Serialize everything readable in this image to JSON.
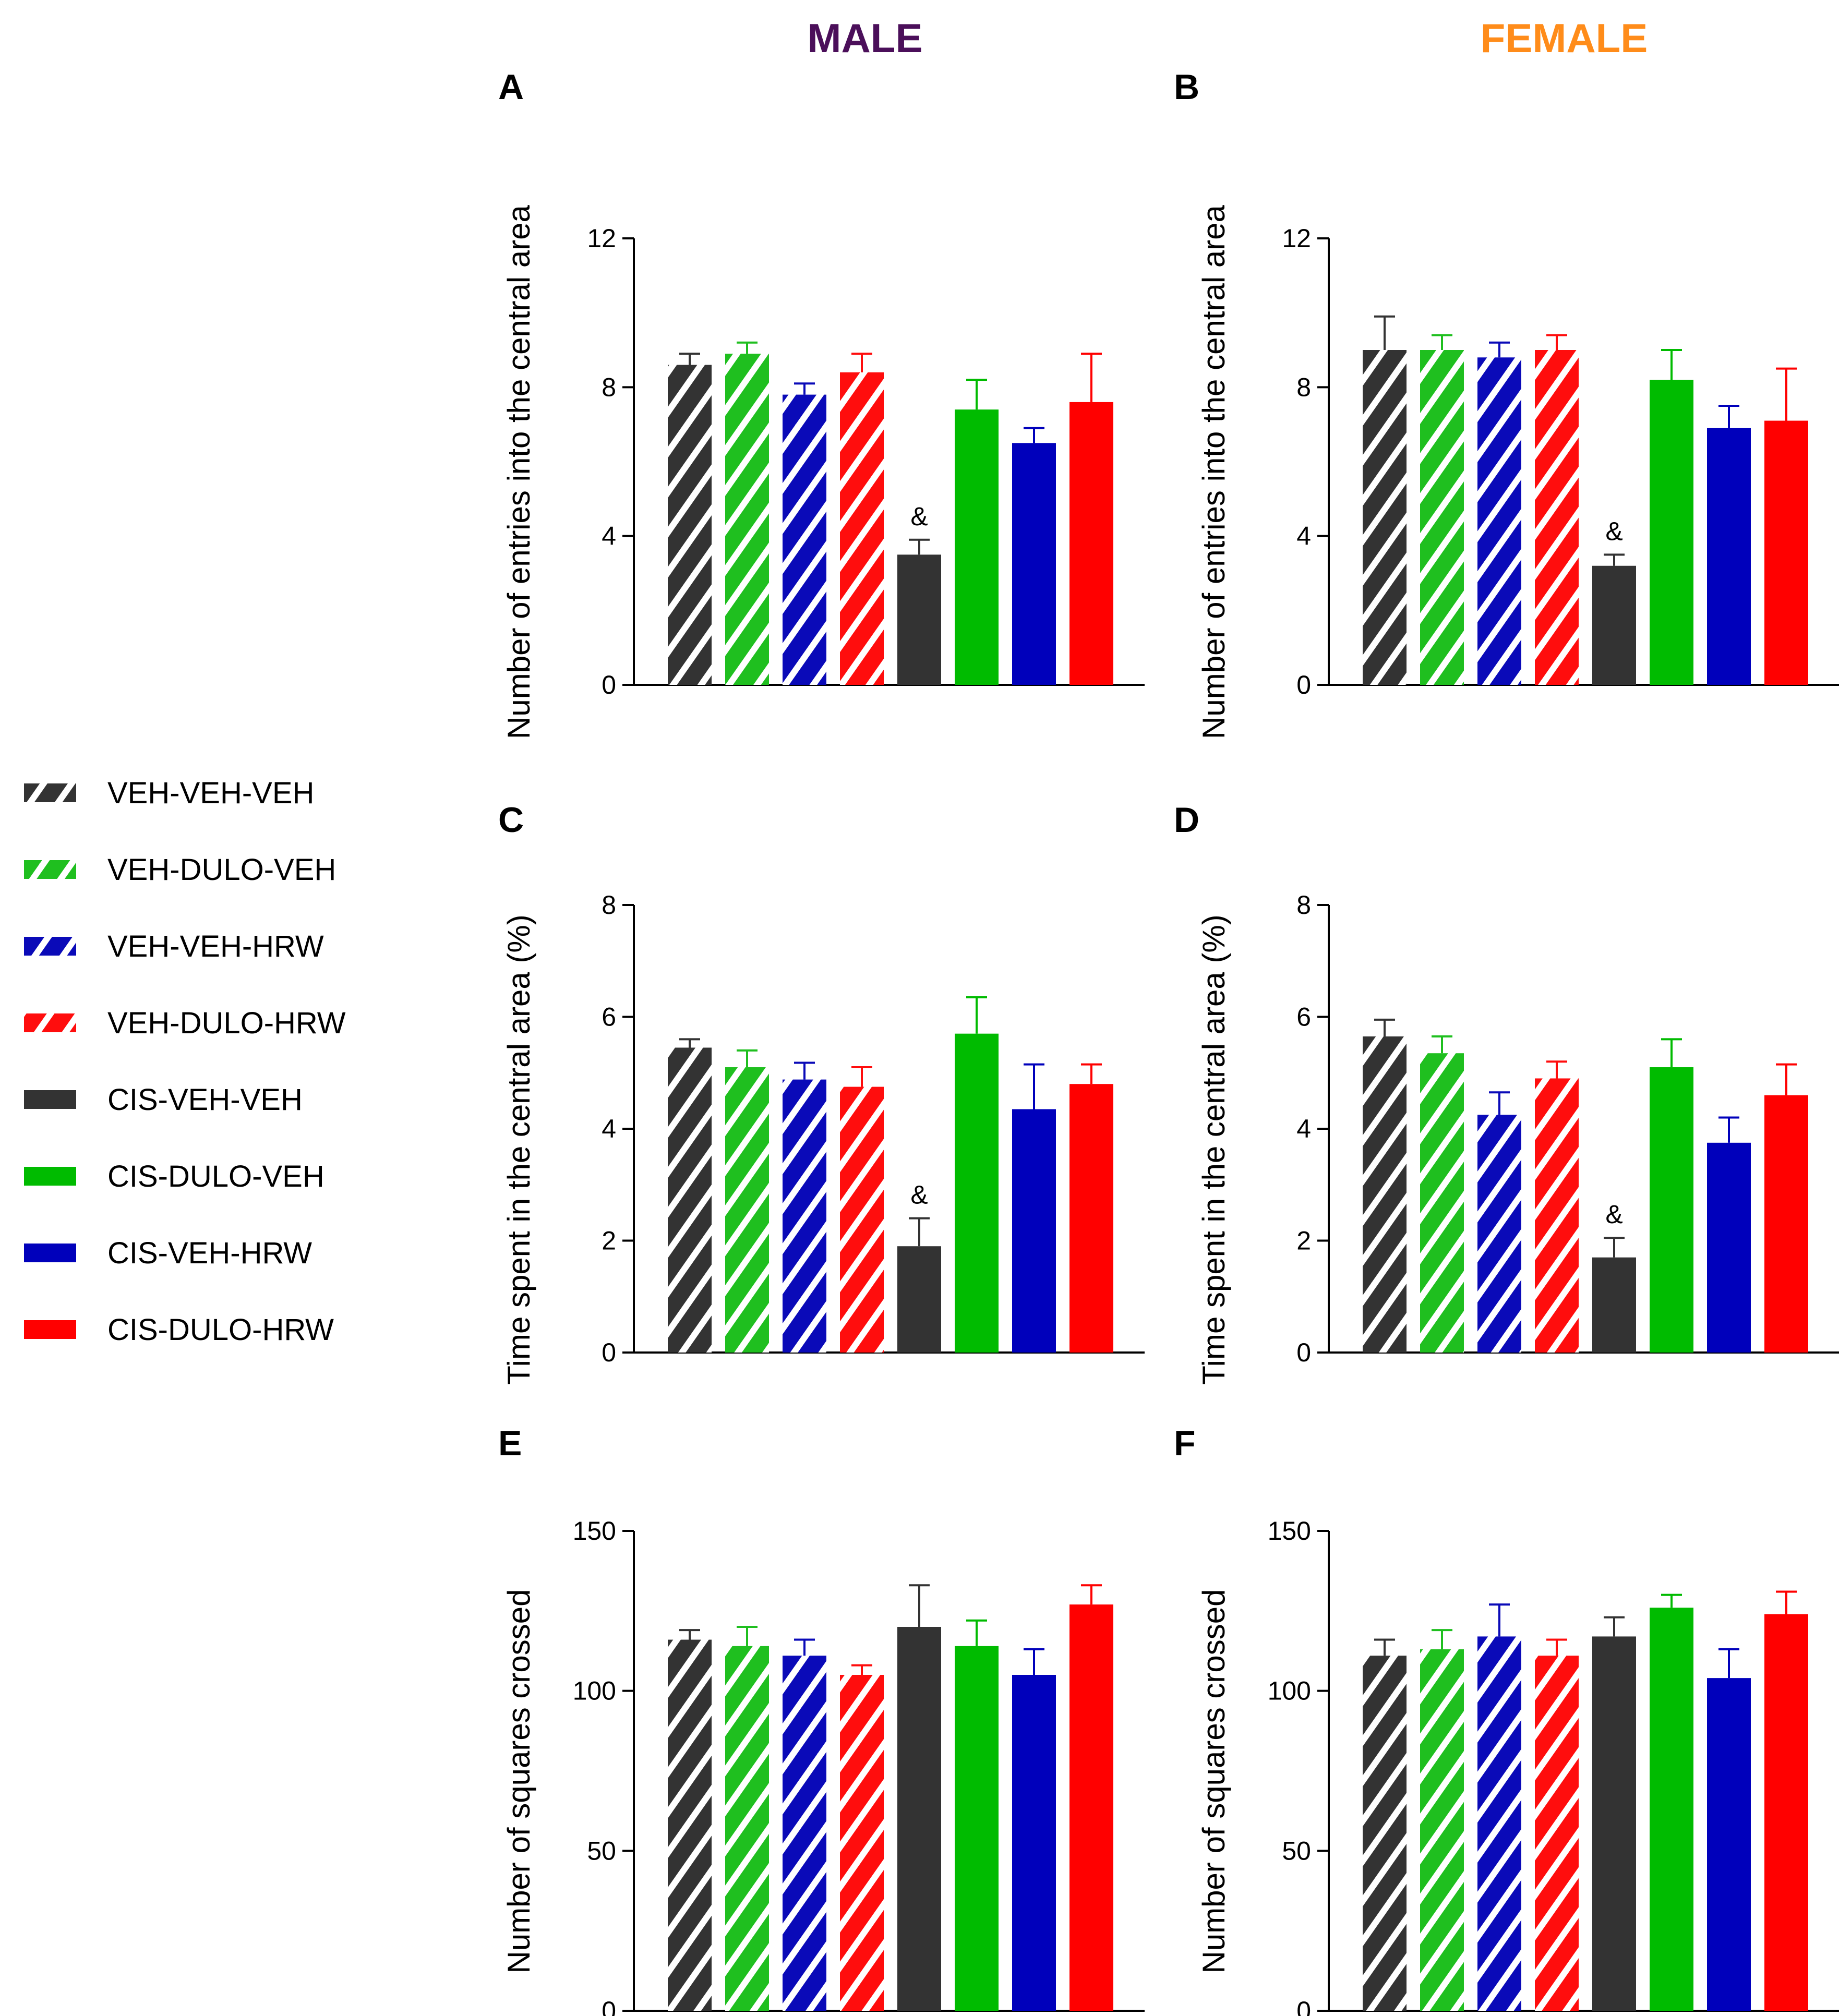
{
  "titles": {
    "male": "MALE",
    "female": "FEMALE"
  },
  "colors": {
    "male_title": "#4b0f5a",
    "female_title": "#ff8c1a",
    "groups": [
      "#333333",
      "#1fbf1f",
      "#0a0ab8",
      "#ff0d0d",
      "#333333",
      "#00bb00",
      "#0000bb",
      "#ff0000"
    ]
  },
  "legend": [
    {
      "label": "VEH-VEH-VEH",
      "pattern": "hatched"
    },
    {
      "label": "VEH-DULO-VEH",
      "pattern": "hatched"
    },
    {
      "label": "VEH-VEH-HRW",
      "pattern": "hatched"
    },
    {
      "label": "VEH-DULO-HRW",
      "pattern": "hatched"
    },
    {
      "label": "CIS-VEH-VEH",
      "pattern": "solid"
    },
    {
      "label": "CIS-DULO-VEH",
      "pattern": "solid"
    },
    {
      "label": "CIS-VEH-HRW",
      "pattern": "solid"
    },
    {
      "label": "CIS-DULO-HRW",
      "pattern": "solid"
    }
  ],
  "chart_data": [
    {
      "panel": "A",
      "sex": "male",
      "type": "bar",
      "ylabel": "Number of entries into the central area",
      "ylim": [
        0,
        12
      ],
      "yticks": [
        "0",
        "4",
        "8",
        "12"
      ],
      "categories": [
        "VEH-VEH-VEH",
        "VEH-DULO-VEH",
        "VEH-VEH-HRW",
        "VEH-DULO-HRW",
        "CIS-VEH-VEH",
        "CIS-DULO-VEH",
        "CIS-VEH-HRW",
        "CIS-DULO-HRW"
      ],
      "values": [
        8.6,
        8.9,
        7.8,
        8.4,
        3.5,
        7.4,
        6.5,
        7.6
      ],
      "errors": [
        0.3,
        0.3,
        0.3,
        0.5,
        0.4,
        0.8,
        0.4,
        1.3
      ],
      "annotations": [
        {
          "index": 4,
          "text": "&"
        }
      ]
    },
    {
      "panel": "B",
      "sex": "female",
      "type": "bar",
      "ylabel": "Number of entries into the central area",
      "ylim": [
        0,
        12
      ],
      "yticks": [
        "0",
        "4",
        "8",
        "12"
      ],
      "categories": [
        "VEH-VEH-VEH",
        "VEH-DULO-VEH",
        "VEH-VEH-HRW",
        "VEH-DULO-HRW",
        "CIS-VEH-VEH",
        "CIS-DULO-VEH",
        "CIS-VEH-HRW",
        "CIS-DULO-HRW"
      ],
      "values": [
        9.0,
        9.0,
        8.8,
        9.0,
        3.2,
        8.2,
        6.9,
        7.1
      ],
      "errors": [
        0.9,
        0.4,
        0.4,
        0.4,
        0.3,
        0.8,
        0.6,
        1.4
      ],
      "annotations": [
        {
          "index": 4,
          "text": "&"
        }
      ]
    },
    {
      "panel": "C",
      "sex": "male",
      "type": "bar",
      "ylabel": "Time spent in the central area (%)",
      "ylim": [
        0,
        8
      ],
      "yticks": [
        "0",
        "2",
        "4",
        "6",
        "8"
      ],
      "categories": [
        "VEH-VEH-VEH",
        "VEH-DULO-VEH",
        "VEH-VEH-HRW",
        "VEH-DULO-HRW",
        "CIS-VEH-VEH",
        "CIS-DULO-VEH",
        "CIS-VEH-HRW",
        "CIS-DULO-HRW"
      ],
      "values": [
        5.45,
        5.1,
        4.88,
        4.75,
        1.9,
        5.7,
        4.35,
        4.8
      ],
      "errors": [
        0.15,
        0.3,
        0.3,
        0.35,
        0.5,
        0.65,
        0.8,
        0.35
      ],
      "annotations": [
        {
          "index": 4,
          "text": "&"
        }
      ]
    },
    {
      "panel": "D",
      "sex": "female",
      "type": "bar",
      "ylabel": "Time spent in the central area (%)",
      "ylim": [
        0,
        8
      ],
      "yticks": [
        "0",
        "2",
        "4",
        "6",
        "8"
      ],
      "categories": [
        "VEH-VEH-VEH",
        "VEH-DULO-VEH",
        "VEH-VEH-HRW",
        "VEH-DULO-HRW",
        "CIS-VEH-VEH",
        "CIS-DULO-VEH",
        "CIS-VEH-HRW",
        "CIS-DULO-HRW"
      ],
      "values": [
        5.65,
        5.35,
        4.25,
        4.9,
        1.7,
        5.1,
        3.75,
        4.6
      ],
      "errors": [
        0.3,
        0.3,
        0.4,
        0.3,
        0.35,
        0.5,
        0.45,
        0.55
      ],
      "annotations": [
        {
          "index": 4,
          "text": "&"
        }
      ]
    },
    {
      "panel": "E",
      "sex": "male",
      "type": "bar",
      "ylabel": "Number of squares crossed",
      "ylim": [
        0,
        150
      ],
      "yticks": [
        "0",
        "50",
        "100",
        "150"
      ],
      "categories": [
        "VEH-VEH-VEH",
        "VEH-DULO-VEH",
        "VEH-VEH-HRW",
        "VEH-DULO-HRW",
        "CIS-VEH-VEH",
        "CIS-DULO-VEH",
        "CIS-VEH-HRW",
        "CIS-DULO-HRW"
      ],
      "values": [
        116,
        114,
        111,
        105,
        120,
        114,
        105,
        127
      ],
      "errors": [
        3,
        6,
        5,
        3,
        13,
        8,
        8,
        6
      ],
      "annotations": []
    },
    {
      "panel": "F",
      "sex": "female",
      "type": "bar",
      "ylabel": "Number of squares crossed",
      "ylim": [
        0,
        150
      ],
      "yticks": [
        "0",
        "50",
        "100",
        "150"
      ],
      "categories": [
        "VEH-VEH-VEH",
        "VEH-DULO-VEH",
        "VEH-VEH-HRW",
        "VEH-DULO-HRW",
        "CIS-VEH-VEH",
        "CIS-DULO-VEH",
        "CIS-VEH-HRW",
        "CIS-DULO-HRW"
      ],
      "values": [
        111,
        113,
        117,
        111,
        117,
        126,
        104,
        124
      ],
      "errors": [
        5,
        6,
        10,
        5,
        6,
        4,
        9,
        7
      ],
      "annotations": []
    }
  ]
}
